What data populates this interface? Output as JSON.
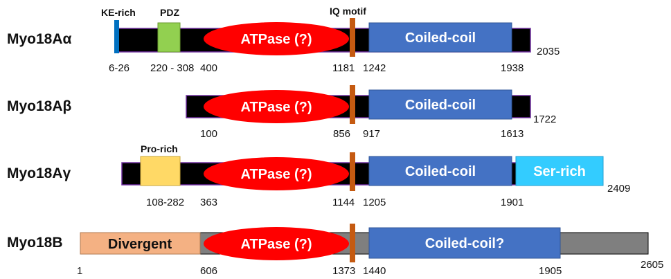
{
  "colors": {
    "backbone_black": "#000000",
    "backbone_gray": "#7f7f7f",
    "atpase_red": "#ff0000",
    "iq_orange": "#c55a11",
    "coiled_blue": "#4472c4",
    "ser_rich_cyan": "#33ccff",
    "pdz_green": "#92d050",
    "pro_rich_yellow": "#ffd966",
    "divergent_salmon": "#f4b183",
    "ke_rich_blue": "#0070c0",
    "outline_purple": "#7030a0"
  },
  "labels": {
    "iq_motif": "IQ motif"
  },
  "proteins": [
    {
      "name": "Myo18Aα",
      "domains": {
        "ke_rich": "KE-rich",
        "pdz": "PDZ",
        "atpase": "ATPase (?)",
        "coiled": "Coiled-coil"
      },
      "numbers": {
        "n_ke": "6-26",
        "n_pdz": "220 - 308",
        "n_atp": "400",
        "n_iq": "1181",
        "n_cc_start": "1242",
        "n_cc_end": "1938",
        "n_len": "2035"
      }
    },
    {
      "name": "Myo18Aβ",
      "domains": {
        "atpase": "ATPase (?)",
        "coiled": "Coiled-coil"
      },
      "numbers": {
        "n_atp": "100",
        "n_iq": "856",
        "n_cc_start": "917",
        "n_cc_end": "1613",
        "n_len": "1722"
      }
    },
    {
      "name": "Myo18Aγ",
      "domains": {
        "pro_rich": "Pro-rich",
        "atpase": "ATPase (?)",
        "coiled": "Coiled-coil",
        "ser_rich": "Ser-rich"
      },
      "numbers": {
        "n_pro": "108-282",
        "n_atp": "363",
        "n_iq": "1144",
        "n_cc_start": "1205",
        "n_cc_end": "1901",
        "n_len": "2409"
      }
    },
    {
      "name": "Myo18B",
      "domains": {
        "divergent": "Divergent",
        "atpase": "ATPase (?)",
        "coiled": "Coiled-coil?"
      },
      "numbers": {
        "n_start": "1",
        "n_atp": "606",
        "n_iq": "1373",
        "n_cc_start": "1440",
        "n_cc_end": "1905",
        "n_len": "2605"
      }
    }
  ]
}
